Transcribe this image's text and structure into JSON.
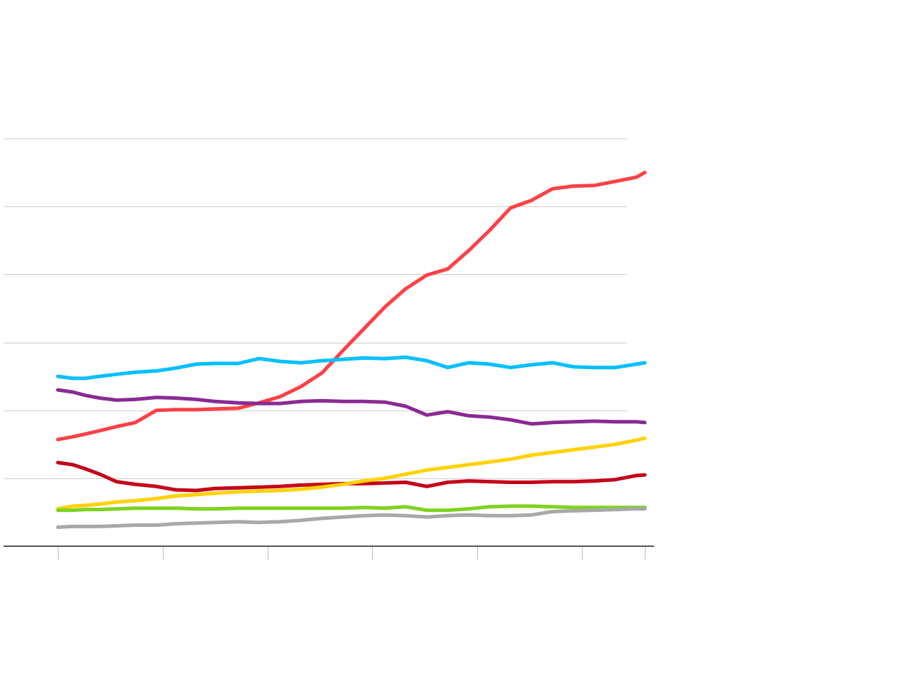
{
  "chart_data": {
    "type": "line",
    "title": "",
    "xlabel": "",
    "ylabel": "",
    "x_range": [
      1990,
      2018
    ],
    "y_range": [
      0,
      60
    ],
    "y_grid": [
      0,
      10,
      20,
      30,
      40,
      50,
      60
    ],
    "x_ticks": [
      1990,
      1995,
      2000,
      2005,
      2010,
      2015,
      2018
    ],
    "grid": true,
    "legend": "none",
    "x": [
      1990,
      1990.7,
      1991.3,
      1992,
      1992.8,
      1993.7,
      1994.7,
      1995.6,
      1996.6,
      1997.5,
      1998.6,
      1999.6,
      2000.6,
      2001.6,
      2002.6,
      2003.6,
      2004.6,
      2005.6,
      2006.6,
      2007.6,
      2008.6,
      2009.6,
      2010.6,
      2011.6,
      2012.6,
      2013.6,
      2014.6,
      2015.6,
      2016.6,
      2017.6,
      2018
    ],
    "series": [
      {
        "color": "#fc4147",
        "values": [
          15.7,
          16.1,
          16.5,
          17.0,
          17.6,
          18.2,
          20.0,
          20.1,
          20.1,
          20.2,
          20.3,
          21.1,
          22.0,
          23.5,
          25.5,
          28.8,
          32.0,
          35.2,
          37.9,
          39.9,
          40.8,
          43.5,
          46.5,
          49.8,
          50.9,
          52.6,
          53.0,
          53.1,
          53.7,
          54.3,
          55.0
        ]
      },
      {
        "color": "#00bfff",
        "values": [
          25.0,
          24.7,
          24.7,
          25.0,
          25.3,
          25.6,
          25.8,
          26.2,
          26.8,
          26.9,
          26.9,
          27.6,
          27.2,
          27.0,
          27.3,
          27.5,
          27.7,
          27.6,
          27.8,
          27.3,
          26.3,
          27.0,
          26.8,
          26.3,
          26.7,
          27.0,
          26.4,
          26.3,
          26.3,
          26.8,
          27.0
        ]
      },
      {
        "color": "#8b2a94",
        "values": [
          23.0,
          22.7,
          22.2,
          21.8,
          21.5,
          21.6,
          21.9,
          21.8,
          21.6,
          21.3,
          21.1,
          21.0,
          21.0,
          21.3,
          21.4,
          21.3,
          21.3,
          21.2,
          20.6,
          19.3,
          19.8,
          19.2,
          19.0,
          18.6,
          18.0,
          18.2,
          18.3,
          18.4,
          18.3,
          18.3,
          18.2
        ]
      },
      {
        "color": "#c40019",
        "values": [
          12.3,
          12.0,
          11.4,
          10.6,
          9.5,
          9.1,
          8.8,
          8.3,
          8.2,
          8.5,
          8.6,
          8.7,
          8.8,
          9.0,
          9.1,
          9.2,
          9.2,
          9.3,
          9.4,
          8.8,
          9.4,
          9.6,
          9.5,
          9.4,
          9.4,
          9.5,
          9.5,
          9.6,
          9.8,
          10.4,
          10.5
        ]
      },
      {
        "color": "#ffd200",
        "values": [
          5.5,
          5.9,
          6.0,
          6.2,
          6.5,
          6.7,
          7.0,
          7.4,
          7.6,
          7.8,
          8.0,
          8.1,
          8.2,
          8.4,
          8.7,
          9.1,
          9.6,
          10.0,
          10.6,
          11.2,
          11.6,
          12.0,
          12.4,
          12.8,
          13.4,
          13.8,
          14.2,
          14.6,
          15.0,
          15.6,
          15.9
        ]
      },
      {
        "color": "#7ed321",
        "values": [
          5.3,
          5.3,
          5.4,
          5.4,
          5.5,
          5.6,
          5.6,
          5.6,
          5.5,
          5.5,
          5.6,
          5.6,
          5.6,
          5.6,
          5.6,
          5.6,
          5.7,
          5.6,
          5.8,
          5.3,
          5.3,
          5.5,
          5.8,
          5.9,
          5.9,
          5.8,
          5.7,
          5.7,
          5.7,
          5.7,
          5.7
        ]
      },
      {
        "color": "#a8a8a8",
        "values": [
          2.8,
          2.9,
          2.9,
          2.9,
          3.0,
          3.1,
          3.1,
          3.3,
          3.4,
          3.5,
          3.6,
          3.5,
          3.6,
          3.8,
          4.1,
          4.3,
          4.5,
          4.6,
          4.5,
          4.3,
          4.5,
          4.6,
          4.5,
          4.5,
          4.6,
          5.1,
          5.2,
          5.3,
          5.4,
          5.5,
          5.5
        ]
      }
    ]
  }
}
